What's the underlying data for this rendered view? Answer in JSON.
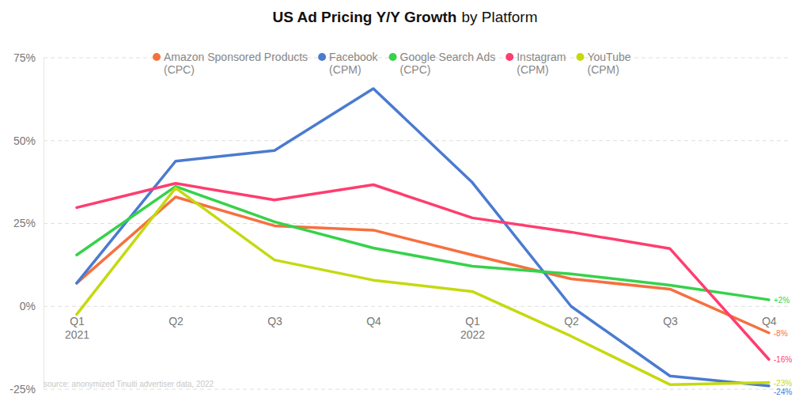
{
  "chart_data": {
    "type": "line",
    "title": "US Ad Pricing Y/Y Growth",
    "subtitle": "by Platform",
    "annotations": [
      "source: anonymized Tinuiti advertiser data, 2022"
    ],
    "categories": [
      "Q1\n2021",
      "Q2",
      "Q3",
      "Q4",
      "Q1\n2022",
      "Q2",
      "Q3",
      "Q4"
    ],
    "series": [
      {
        "name": "Amazon Sponsored Products\n(CPC)",
        "color": "#f6703f",
        "values": [
          7,
          33,
          24.3,
          23,
          15.5,
          8.3,
          5.2,
          -8
        ],
        "value_labels": [
          null,
          null,
          null,
          null,
          null,
          null,
          null,
          "-8%"
        ]
      },
      {
        "name": "Facebook\n(CPM)",
        "color": "#4a7bd0",
        "values": [
          7,
          43.8,
          47,
          65.7,
          37.4,
          0,
          -21,
          -24
        ],
        "value_labels": [
          null,
          null,
          null,
          null,
          null,
          null,
          null,
          "-24%"
        ]
      },
      {
        "name": "Google Search Ads\n(CPC)",
        "color": "#36d24a",
        "values": [
          15.5,
          36.2,
          25.5,
          17.6,
          12.1,
          9.8,
          6.4,
          2
        ],
        "value_labels": [
          null,
          null,
          null,
          null,
          null,
          null,
          null,
          "+2%"
        ]
      },
      {
        "name": "Instagram\n(CPM)",
        "color": "#ff3d6f",
        "values": [
          29.8,
          37.1,
          32.1,
          36.7,
          26.7,
          22.4,
          17.4,
          -16
        ],
        "value_labels": [
          null,
          null,
          null,
          null,
          null,
          null,
          null,
          "-16%"
        ]
      },
      {
        "name": "YouTube\n(CPM)",
        "color": "#c5d910",
        "values": [
          -2.4,
          35.7,
          14,
          7.9,
          4.5,
          -9,
          -23.6,
          -23
        ],
        "value_labels": [
          null,
          null,
          null,
          null,
          null,
          null,
          null,
          "-23%"
        ]
      }
    ],
    "ylim": [
      -25,
      75
    ],
    "yticks": [
      {
        "value": -25,
        "label": "-25%"
      },
      {
        "value": 0,
        "label": "0%"
      },
      {
        "value": 25,
        "label": "25%"
      },
      {
        "value": 50,
        "label": "50%"
      },
      {
        "value": 75,
        "label": "75%"
      }
    ],
    "grid": true,
    "legend": "top",
    "data_labels": true
  }
}
